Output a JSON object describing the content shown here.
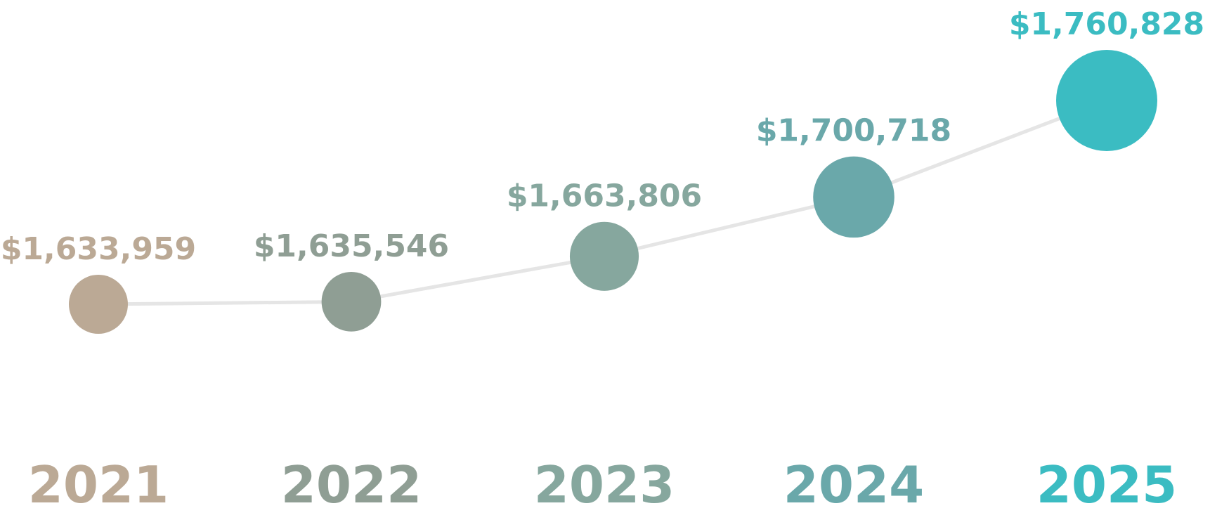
{
  "chart_data": {
    "type": "line",
    "categories": [
      "2021",
      "2022",
      "2023",
      "2024",
      "2025"
    ],
    "values": [
      1633959,
      1635546,
      1663806,
      1700718,
      1760828
    ],
    "value_labels": [
      "$1,633,959",
      "$1,635,546",
      "$1,663,806",
      "$1,700,718",
      "$1,760,828"
    ],
    "colors": [
      "#bba995",
      "#8f9e94",
      "#86a79e",
      "#6aa8aa",
      "#3bbcc2"
    ],
    "line_color": "#e5e5e5",
    "grid": false,
    "legend": "none"
  }
}
